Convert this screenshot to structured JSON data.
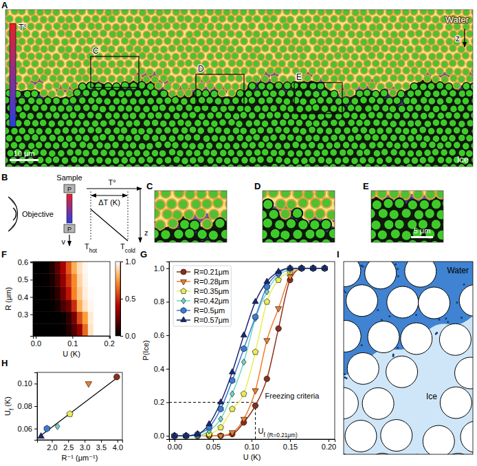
{
  "panel_labels": [
    "A",
    "B",
    "C",
    "D",
    "E",
    "F",
    "G",
    "H",
    "I"
  ],
  "panel_a": {
    "water": "Water",
    "ice": "Ice",
    "z": "z",
    "colorbar": "T°",
    "scale_bar": "10 μm",
    "boxes": [
      "C",
      "D",
      "E"
    ]
  },
  "panel_b": {
    "objective": "Objective",
    "sample": "Sample",
    "plate_top": "P",
    "plate_bottom": "P",
    "t_axis": "T°",
    "delta_t": "ΔT (K)",
    "z": "z",
    "v": "v",
    "t_hot": {
      "base": "T",
      "sub": "hot"
    },
    "t_cold": {
      "base": "T",
      "sub": "cold"
    }
  },
  "panel_e": {
    "scale_bar": "5 μm"
  },
  "panel_i": {
    "water": "Water",
    "ice": "Ice"
  },
  "chart_data": [
    {
      "type": "heatmap",
      "xlabel": "U (K)",
      "ylabel": "R (μm)",
      "x": [
        0,
        0.015,
        0.03,
        0.045,
        0.06,
        0.075,
        0.09,
        0.105,
        0.12,
        0.135,
        0.15,
        0.165,
        0.18,
        0.195
      ],
      "y": [
        0.21,
        0.28,
        0.35,
        0.42,
        0.5,
        0.57
      ],
      "cells": [
        [
          0,
          0,
          0,
          0,
          0,
          0.01,
          0.08,
          0.18,
          0.34,
          0.64,
          0.93,
          1,
          1,
          1
        ],
        [
          0,
          0,
          0,
          0,
          0,
          0.02,
          0.1,
          0.27,
          0.57,
          0.76,
          0.95,
          1,
          1,
          1
        ],
        [
          0,
          0,
          0,
          0.01,
          0.05,
          0.16,
          0.25,
          0.5,
          0.8,
          0.93,
          0.98,
          1,
          1,
          1
        ],
        [
          0,
          0,
          0,
          0.03,
          0.1,
          0.25,
          0.44,
          0.7,
          0.86,
          0.96,
          0.99,
          1,
          1,
          1
        ],
        [
          0,
          0,
          0.01,
          0.05,
          0.16,
          0.33,
          0.52,
          0.71,
          0.89,
          0.97,
          1,
          1,
          1,
          1
        ],
        [
          0,
          0,
          0.01,
          0.07,
          0.2,
          0.38,
          0.6,
          0.8,
          0.92,
          0.98,
          1,
          1,
          1,
          1
        ]
      ],
      "xlim": [
        -0.0075,
        0.2025
      ],
      "ylim": [
        0.175,
        0.605
      ],
      "xticks": [
        {
          "value": 0,
          "label": "0.0"
        },
        0.1,
        0.2
      ],
      "yticks": [
        0.3,
        0.4,
        0.5,
        0.6
      ],
      "colorbar": {
        "lim": [
          0,
          1
        ],
        "ticks": [
          {
            "value": 0,
            "label": "0.0"
          },
          0.5,
          {
            "value": 1,
            "label": "1.0"
          }
        ]
      }
    },
    {
      "type": "line",
      "xlabel": "U (K)",
      "ylabel": "P(Ice)",
      "x": [
        0,
        0.015,
        0.03,
        0.045,
        0.06,
        0.075,
        0.09,
        0.105,
        0.12,
        0.135,
        0.15,
        0.165,
        0.18,
        0.195
      ],
      "series": [
        {
          "name": "R=0.21μm",
          "color": "#8b2f1c",
          "marker": "circle",
          "values": [
            0,
            0,
            0,
            0,
            0,
            0.01,
            0.08,
            0.18,
            0.34,
            0.64,
            0.93,
            1,
            1,
            1
          ]
        },
        {
          "name": "R=0.28μm",
          "color": "#f07c2a",
          "marker": "triangle-down",
          "values": [
            0,
            0,
            0,
            0,
            0,
            0.02,
            0.1,
            0.27,
            0.57,
            0.76,
            0.95,
            1,
            1,
            1
          ]
        },
        {
          "name": "R=0.35μm",
          "color": "#e8ec5a",
          "marker": "pentagon",
          "values": [
            0,
            0,
            0,
            0.01,
            0.05,
            0.16,
            0.25,
            0.5,
            0.8,
            0.93,
            0.98,
            1,
            1,
            1
          ]
        },
        {
          "name": "R=0.42μm",
          "color": "#6cd6c6",
          "marker": "diamond",
          "values": [
            0,
            0,
            0,
            0.03,
            0.1,
            0.25,
            0.44,
            0.7,
            0.86,
            0.96,
            0.99,
            1,
            1,
            1
          ]
        },
        {
          "name": "R=0.5μm",
          "color": "#3d7ad6",
          "marker": "hexagon",
          "values": [
            0,
            0,
            0.01,
            0.05,
            0.16,
            0.33,
            0.52,
            0.71,
            0.89,
            0.97,
            1,
            1,
            1,
            1
          ]
        },
        {
          "name": "R=0.57μm",
          "color": "#1b2774",
          "marker": "triangle-up",
          "values": [
            0,
            0,
            0.01,
            0.07,
            0.2,
            0.38,
            0.6,
            0.8,
            0.92,
            0.98,
            1,
            1,
            1,
            1
          ]
        }
      ],
      "xlim": [
        -0.007,
        0.208
      ],
      "ylim": [
        -0.02,
        1.04
      ],
      "xticks": [
        {
          "value": 0,
          "label": "0.00"
        },
        0.05,
        {
          "value": 0.1,
          "label": "0.10"
        },
        0.15,
        {
          "value": 0.2,
          "label": "0.20"
        }
      ],
      "yticks": [
        {
          "value": 0,
          "label": "0.0"
        },
        0.2,
        0.4,
        0.6,
        0.8,
        {
          "value": 1,
          "label": "1.0"
        }
      ],
      "legend": "upper left",
      "annotations": {
        "criterion": {
          "text": "Freezing criteria",
          "y": 0.2
        },
        "uf": {
          "base": "U",
          "sub": "f",
          "note": "(R=0.21μm)",
          "x": 0.105
        }
      }
    },
    {
      "type": "scatter",
      "xlabel": "R⁻¹ (μm⁻¹)",
      "ylabel": {
        "base": "U",
        "sub": "f",
        "rest": "(K)"
      },
      "xlim": [
        1.55,
        4.15
      ],
      "ylim": [
        0.05,
        0.11
      ],
      "xticks": [
        {
          "value": 2,
          "label": "2.0"
        },
        2.5,
        {
          "value": 3,
          "label": "3.0"
        },
        3.5,
        {
          "value": 4,
          "label": "4.0"
        }
      ],
      "yticks": [
        0.06,
        0.08,
        {
          "value": 0.1,
          "label": "0.10"
        }
      ],
      "series": [
        {
          "color": "#8b2f1c",
          "marker": "circle",
          "x": [
            3.98
          ],
          "values": [
            0.106
          ]
        },
        {
          "color": "#f07c2a",
          "marker": "triangle-down",
          "x": [
            3.12
          ],
          "values": [
            0.1
          ]
        },
        {
          "color": "#e8ec5a",
          "marker": "pentagon",
          "x": [
            2.55
          ],
          "values": [
            0.073
          ]
        },
        {
          "color": "#6cd6c6",
          "marker": "diamond",
          "x": [
            2.17
          ],
          "values": [
            0.062
          ]
        },
        {
          "color": "#3d7ad6",
          "marker": "hexagon",
          "x": [
            1.85
          ],
          "values": [
            0.06
          ]
        },
        {
          "color": "#1b2774",
          "marker": "triangle-up",
          "x": [
            1.67
          ],
          "values": [
            0.053
          ]
        },
        {
          "type": "line",
          "color": "#000000",
          "x": [
            1.6,
            4.05
          ],
          "values": [
            0.0525,
            0.1065
          ]
        }
      ]
    }
  ]
}
